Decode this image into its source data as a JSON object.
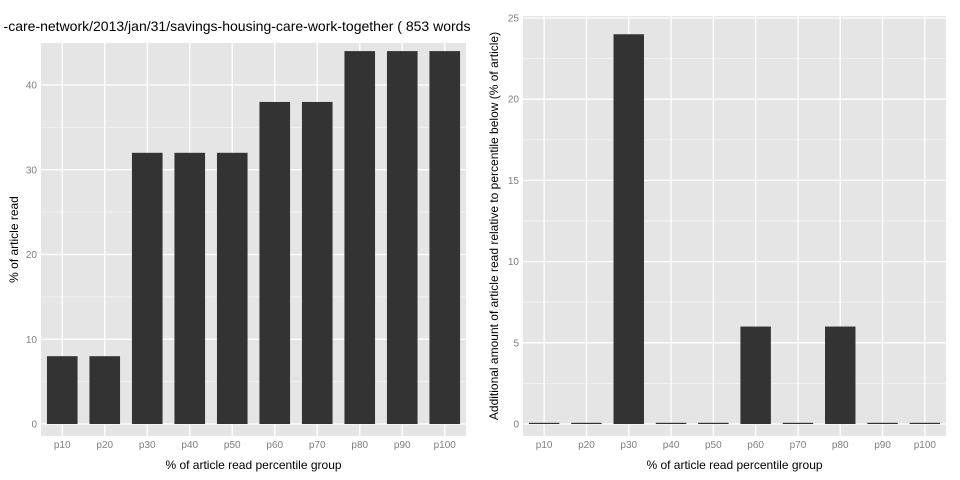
{
  "colors": {
    "panel_bg": "#E5E5E5",
    "grid_major": "#FFFFFF",
    "grid_minor": "#F2F2F2",
    "bar": "#333333",
    "tick_text": "#7F7F7F",
    "axis_text": "#000000"
  },
  "chart_data": [
    {
      "type": "bar",
      "title": "-care-network/2013/jan/31/savings-housing-care-work-together ( 853 words",
      "xlabel": "% of article read percentile group",
      "ylabel": "% of article read",
      "categories": [
        "p10",
        "p20",
        "p30",
        "p40",
        "p50",
        "p60",
        "p70",
        "p80",
        "p90",
        "p100"
      ],
      "values": [
        8,
        8,
        32,
        32,
        32,
        38,
        38,
        44,
        44,
        44
      ],
      "ylim": [
        0,
        45
      ],
      "yticks": [
        0,
        10,
        20,
        30,
        40
      ],
      "grid": true,
      "legend": "none"
    },
    {
      "type": "bar",
      "title": "",
      "xlabel": "% of article read percentile group",
      "ylabel": "Additional amount of article read relative to percentile below (% of article)",
      "categories": [
        "p10",
        "p20",
        "p30",
        "p40",
        "p50",
        "p60",
        "p70",
        "p80",
        "p90",
        "p100"
      ],
      "values": [
        0,
        0,
        24,
        0,
        0,
        6,
        0,
        6,
        0,
        0
      ],
      "ylim": [
        0,
        25
      ],
      "yticks": [
        0,
        5,
        10,
        15,
        20,
        25
      ],
      "grid": true,
      "legend": "none"
    }
  ]
}
